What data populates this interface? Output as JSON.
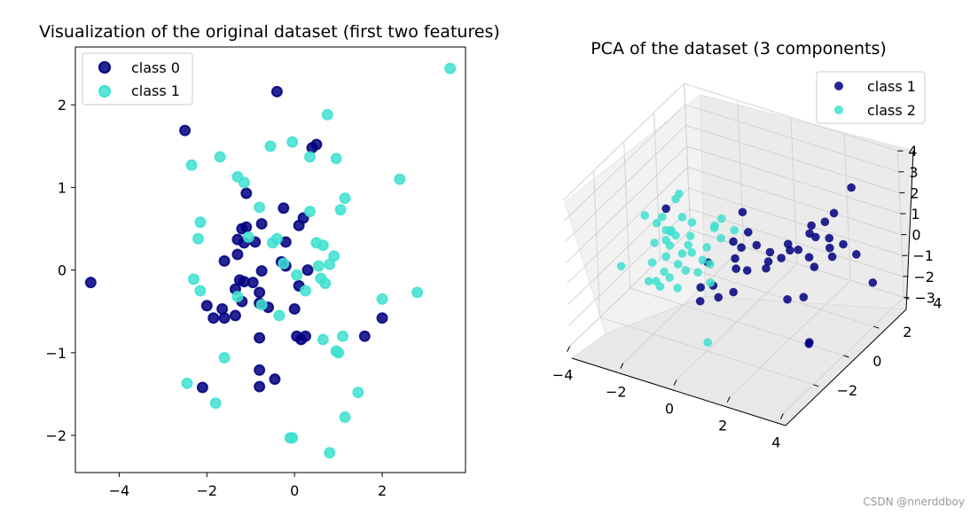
{
  "watermark": "CSDN @nnerddboy",
  "colors": {
    "class_dark": "#000080",
    "class_light": "#40E0D0"
  },
  "chart_data": [
    {
      "type": "scatter",
      "title": "Visualization of the original dataset (first two features)",
      "xlabel": "",
      "ylabel": "",
      "xlim": [
        -5.0,
        3.9
      ],
      "ylim": [
        -2.45,
        2.7
      ],
      "xticks": [
        "−4",
        "−2",
        "0",
        "2"
      ],
      "xtick_values": [
        -4,
        -2,
        0,
        2
      ],
      "yticks": [
        "−2",
        "−1",
        "0",
        "1",
        "2"
      ],
      "ytick_values": [
        -2,
        -1,
        0,
        1,
        2
      ],
      "legend_position": "top-left",
      "series": [
        {
          "name": "class 0",
          "color": "#000080",
          "points": [
            [
              -4.65,
              -0.15
            ],
            [
              -2.5,
              1.69
            ],
            [
              -0.4,
              2.16
            ],
            [
              0.4,
              1.48
            ],
            [
              0.5,
              1.52
            ],
            [
              -1.1,
              0.93
            ],
            [
              -1.2,
              0.5
            ],
            [
              -1.1,
              0.52
            ],
            [
              -0.75,
              0.56
            ],
            [
              -0.25,
              0.75
            ],
            [
              0.2,
              0.63
            ],
            [
              0.1,
              0.54
            ],
            [
              -1.3,
              0.37
            ],
            [
              -1.15,
              0.33
            ],
            [
              -0.9,
              0.34
            ],
            [
              -0.2,
              0.34
            ],
            [
              -1.3,
              0.19
            ],
            [
              -1.6,
              0.11
            ],
            [
              -0.3,
              0.1
            ],
            [
              -0.2,
              0.05
            ],
            [
              -0.75,
              -0.01
            ],
            [
              -1.25,
              -0.12
            ],
            [
              -1.15,
              -0.14
            ],
            [
              -0.95,
              -0.15
            ],
            [
              -1.35,
              -0.23
            ],
            [
              -0.8,
              -0.27
            ],
            [
              0.1,
              -0.19
            ],
            [
              -1.2,
              -0.38
            ],
            [
              -0.8,
              -0.4
            ],
            [
              -0.6,
              -0.45
            ],
            [
              -2.0,
              -0.43
            ],
            [
              -1.65,
              -0.47
            ],
            [
              0.0,
              -0.47
            ],
            [
              -1.35,
              -0.55
            ],
            [
              -1.6,
              -0.58
            ],
            [
              -1.85,
              -0.58
            ],
            [
              -0.8,
              -0.82
            ],
            [
              0.05,
              -0.8
            ],
            [
              0.15,
              -0.84
            ],
            [
              -0.8,
              -1.21
            ],
            [
              -0.45,
              -1.32
            ],
            [
              -0.8,
              -1.41
            ],
            [
              -2.1,
              -1.42
            ],
            [
              1.6,
              -0.8
            ],
            [
              2.0,
              -0.58
            ],
            [
              0.25,
              -0.8
            ],
            [
              0.3,
              0.0
            ]
          ]
        },
        {
          "name": "class 1",
          "color": "#40E0D0",
          "points": [
            [
              3.55,
              2.44
            ],
            [
              0.75,
              1.88
            ],
            [
              -0.05,
              1.55
            ],
            [
              -0.55,
              1.5
            ],
            [
              -1.7,
              1.37
            ],
            [
              -2.35,
              1.27
            ],
            [
              0.35,
              1.37
            ],
            [
              0.95,
              1.35
            ],
            [
              -1.3,
              1.13
            ],
            [
              -1.15,
              1.06
            ],
            [
              2.4,
              1.1
            ],
            [
              1.15,
              0.87
            ],
            [
              1.05,
              0.73
            ],
            [
              0.35,
              0.71
            ],
            [
              -0.8,
              0.76
            ],
            [
              -2.15,
              0.58
            ],
            [
              -2.2,
              0.38
            ],
            [
              -1.05,
              0.4
            ],
            [
              -0.5,
              0.33
            ],
            [
              -0.4,
              0.38
            ],
            [
              0.5,
              0.33
            ],
            [
              0.65,
              0.3
            ],
            [
              0.9,
              0.17
            ],
            [
              0.55,
              0.05
            ],
            [
              0.8,
              0.07
            ],
            [
              -0.25,
              0.08
            ],
            [
              0.05,
              -0.06
            ],
            [
              0.6,
              -0.1
            ],
            [
              0.7,
              -0.16
            ],
            [
              -2.3,
              -0.11
            ],
            [
              -2.15,
              -0.25
            ],
            [
              -1.3,
              -0.32
            ],
            [
              0.25,
              -0.25
            ],
            [
              -0.35,
              -0.55
            ],
            [
              -0.75,
              -0.42
            ],
            [
              2.0,
              -0.35
            ],
            [
              2.8,
              -0.27
            ],
            [
              0.65,
              -0.84
            ],
            [
              1.1,
              -0.8
            ],
            [
              0.95,
              -0.98
            ],
            [
              1.0,
              -1.0
            ],
            [
              -1.6,
              -1.06
            ],
            [
              -2.45,
              -1.37
            ],
            [
              1.45,
              -1.48
            ],
            [
              -1.8,
              -1.61
            ],
            [
              1.15,
              -1.78
            ],
            [
              -0.1,
              -2.03
            ],
            [
              -0.05,
              -2.03
            ],
            [
              0.8,
              -2.21
            ]
          ]
        }
      ]
    },
    {
      "type": "scatter",
      "title": "PCA of the dataset (3 components)",
      "xlabel": "",
      "ylabel": "",
      "zlabel": "",
      "xlim": [
        -4,
        4
      ],
      "ylim": [
        -4,
        4
      ],
      "zlim": [
        -3,
        4
      ],
      "xticks": [
        "−4",
        "−2",
        "0",
        "2",
        "4"
      ],
      "yticks": [
        "−2",
        "0",
        "2",
        "4"
      ],
      "zticks": [
        "−3",
        "−2",
        "−1",
        "0",
        "1",
        "2",
        "3",
        "4"
      ],
      "legend_position": "top-right",
      "series": [
        {
          "name": "class 1",
          "color": "#000080",
          "points": [
            [
              2.3,
              3.8,
              1.7
            ],
            [
              1.6,
              3.8,
              0.2
            ],
            [
              1.6,
              3.2,
              0.2
            ],
            [
              1.2,
              3.0,
              0.0
            ],
            [
              1.0,
              3.2,
              -0.6
            ],
            [
              1.5,
              3.6,
              -0.9
            ],
            [
              2.2,
              3.3,
              -0.7
            ],
            [
              1.8,
              3.1,
              -0.9
            ],
            [
              2.8,
              3.1,
              -0.8
            ],
            [
              0.9,
              2.6,
              -1.0
            ],
            [
              2.0,
              2.9,
              -1.1
            ],
            [
              1.3,
              2.6,
              -1.2
            ],
            [
              1.6,
              2.4,
              -1.4
            ],
            [
              0.6,
              2.0,
              -1.1
            ],
            [
              0.3,
              1.8,
              -0.8
            ],
            [
              0.4,
              1.5,
              -1.0
            ],
            [
              -0.5,
              1.5,
              1.0
            ],
            [
              -0.2,
              1.3,
              0.3
            ],
            [
              0.1,
              1.3,
              -0.2
            ],
            [
              -0.6,
              1.0,
              -0.1
            ],
            [
              -0.5,
              0.9,
              -0.8
            ],
            [
              -0.3,
              0.6,
              -1.0
            ],
            [
              0.0,
              0.8,
              -1.1
            ],
            [
              0.6,
              1.0,
              -0.9
            ],
            [
              1.6,
              0.6,
              -1.7
            ],
            [
              -0.2,
              0.2,
              -1.8
            ],
            [
              -0.9,
              0.1,
              -1.7
            ],
            [
              -0.6,
              -0.1,
              -2.0
            ],
            [
              -1.2,
              -0.2,
              -1.7
            ],
            [
              -1.0,
              -0.6,
              -2.0
            ],
            [
              -3.4,
              1.5,
              0.0
            ],
            [
              -1.6,
              1.0,
              -1.5
            ],
            [
              -0.9,
              2.0,
              -1.2
            ],
            [
              1.8,
              1.3,
              -2.0
            ],
            [
              2.9,
              -0.3,
              -2.6
            ],
            [
              3.0,
              -0.5,
              -2.5
            ],
            [
              3.2,
              3.4,
              -2.2
            ],
            [
              1.0,
              1.9,
              -0.5
            ],
            [
              1.4,
              2.9,
              -0.4
            ],
            [
              0.7,
              2.3,
              -0.6
            ]
          ]
        },
        {
          "name": "class 2",
          "color": "#40E0D0",
          "points": [
            [
              -2.7,
              1.2,
              1.2
            ],
            [
              -2.9,
              1.3,
              0.8
            ],
            [
              -2.5,
              1.0,
              0.3
            ],
            [
              -3.2,
              0.9,
              0.1
            ],
            [
              -3.3,
              0.7,
              -0.1
            ],
            [
              -2.2,
              1.1,
              0.1
            ],
            [
              -2.9,
              0.6,
              -0.2
            ],
            [
              -2.1,
              0.8,
              -0.3
            ],
            [
              -1.4,
              1.2,
              0.2
            ],
            [
              -1.6,
              1.5,
              -0.2
            ],
            [
              -1.3,
              1.4,
              -0.5
            ],
            [
              -0.9,
              1.6,
              -0.1
            ],
            [
              -2.6,
              0.3,
              -0.6
            ],
            [
              -1.9,
              0.5,
              -0.8
            ],
            [
              -2.2,
              0.4,
              -0.9
            ],
            [
              -2.7,
              0.2,
              -1.1
            ],
            [
              -3.3,
              0.5,
              -0.9
            ],
            [
              -2.2,
              0.1,
              -1.2
            ],
            [
              -1.8,
              -0.1,
              -1.2
            ],
            [
              -1.9,
              0.3,
              -0.3
            ],
            [
              -1.5,
              0.5,
              -1.0
            ],
            [
              -1.4,
              0.0,
              -1.2
            ],
            [
              -2.5,
              -0.3,
              -1.4
            ],
            [
              -3.3,
              0.3,
              -1.7
            ],
            [
              -2.7,
              -0.5,
              -1.8
            ],
            [
              -3.1,
              -0.3,
              -2.1
            ],
            [
              -4.0,
              -0.5,
              -1.6
            ],
            [
              -2.3,
              -0.3,
              -1.6
            ],
            [
              -2.5,
              -0.6,
              -1.9
            ],
            [
              -1.9,
              -0.5,
              -1.8
            ],
            [
              -1.0,
              0.1,
              -1.6
            ],
            [
              -1.1,
              0.3,
              -0.9
            ],
            [
              -2.6,
              0.7,
              -0.4
            ],
            [
              -2.9,
              0.9,
              -0.5
            ],
            [
              -1.5,
              0.8,
              -0.6
            ],
            [
              -1.6,
              2.0,
              -0.1
            ],
            [
              -3.0,
              1.1,
              -0.6
            ],
            [
              -2.8,
              0.4,
              -0.5
            ],
            [
              -3.8,
              0.8,
              0.0
            ],
            [
              -0.6,
              -0.9,
              -3.6
            ]
          ]
        }
      ]
    }
  ]
}
